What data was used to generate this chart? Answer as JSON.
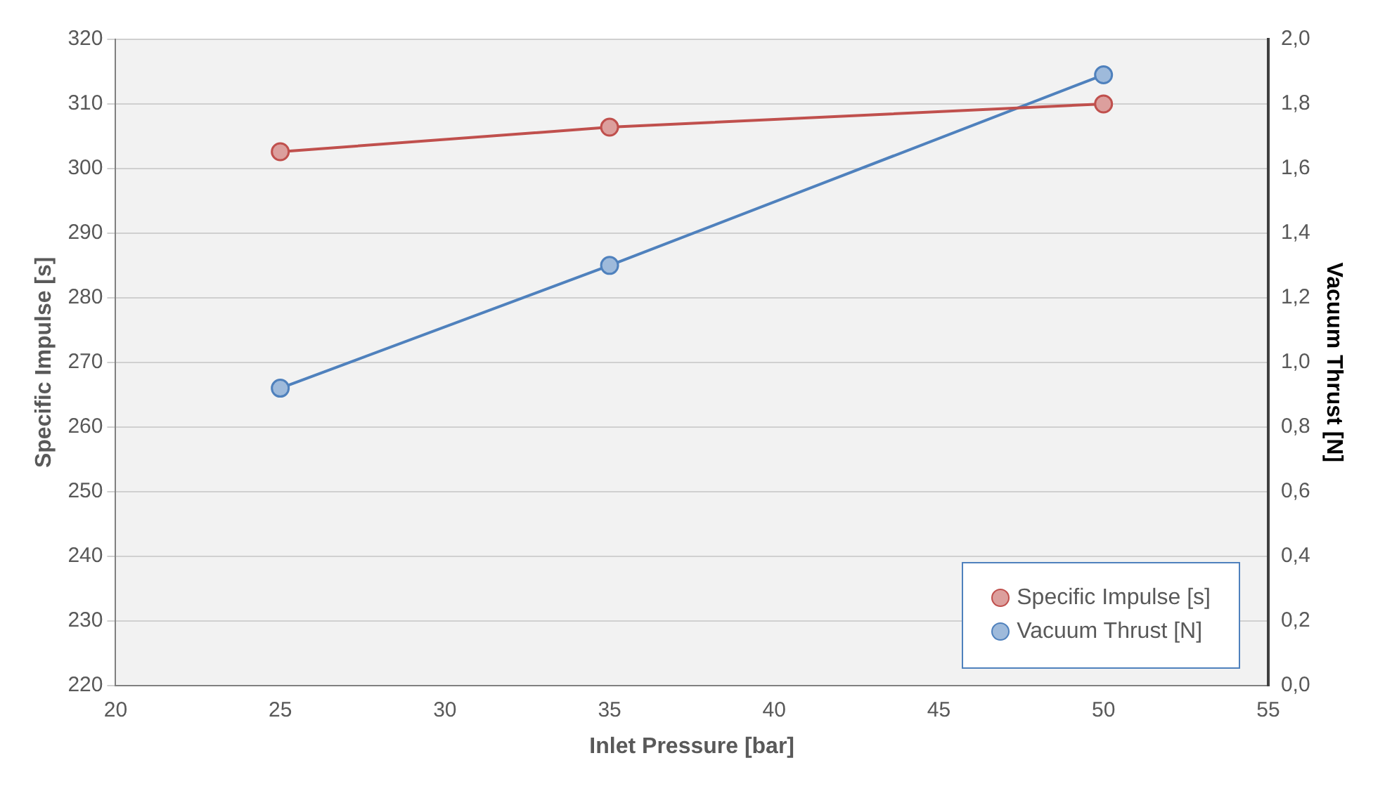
{
  "chart_data": {
    "type": "line",
    "xlabel": "Inlet Pressure [bar]",
    "ylabel": "Specific Impulse [s]",
    "y2label": "Vacuum Thrust [N]",
    "x": [
      25,
      35,
      50
    ],
    "series": [
      {
        "name": "Specific Impulse [s]",
        "color": "#c0504d",
        "values": [
          302.6,
          306.4,
          310.0
        ]
      },
      {
        "name": "Vacuum Thrust [N]",
        "color": "#4f81bd",
        "values": [
          0.92,
          1.3,
          1.89
        ],
        "axis": "y2"
      }
    ],
    "xlim": [
      20,
      55
    ],
    "xticks": [
      20,
      25,
      30,
      35,
      40,
      45,
      50,
      55
    ],
    "ylim": [
      220,
      320
    ],
    "yticks": [
      220,
      230,
      240,
      250,
      260,
      270,
      280,
      290,
      300,
      310,
      320
    ],
    "y2lim": [
      0,
      2
    ],
    "y2ticks": [
      {
        "value": 0,
        "label": "0,0"
      },
      {
        "value": 0.2,
        "label": "0,2"
      },
      {
        "value": 0.4,
        "label": "0,4"
      },
      {
        "value": 0.6,
        "label": "0,6"
      },
      {
        "value": 0.8,
        "label": "0,8"
      },
      {
        "value": 1.0,
        "label": "1,0"
      },
      {
        "value": 1.2,
        "label": "1,2"
      },
      {
        "value": 1.4,
        "label": "1,4"
      },
      {
        "value": 1.6,
        "label": "1,6"
      },
      {
        "value": 1.8,
        "label": "1,8"
      },
      {
        "value": 2.0,
        "label": "2,0"
      }
    ],
    "grid": "y",
    "legend": "bottom right",
    "marker": "circle",
    "line_style": "solid"
  }
}
